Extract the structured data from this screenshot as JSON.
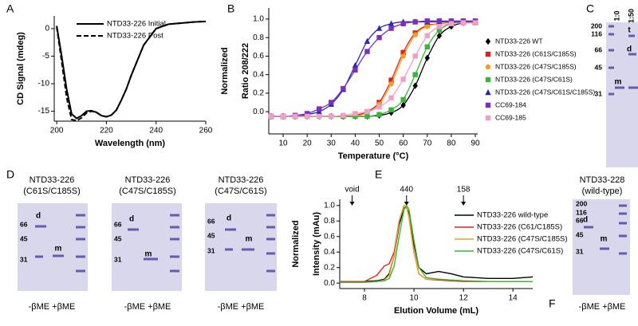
{
  "panel_labels": [
    "A",
    "B",
    "C",
    "D",
    "E",
    "F"
  ],
  "chart_data": [
    {
      "type": "line",
      "xlabel": "Wavelength (nm)",
      "ylabel": [
        "CD Signal (mdeg)"
      ],
      "x": [
        200,
        202,
        204,
        206,
        208,
        210,
        212,
        214,
        216,
        218,
        220,
        222,
        224,
        226,
        228,
        230,
        235,
        240,
        245,
        250,
        255,
        260
      ],
      "series": [
        {
          "name": "NTD33-226 Initial",
          "color": "#000000",
          "dash": false,
          "values": [
            0.5,
            -5,
            -11,
            -15.5,
            -16.3,
            -15.8,
            -15,
            -14.9,
            -15.2,
            -15.8,
            -16,
            -15.7,
            -14.8,
            -13,
            -11,
            -8.5,
            -3,
            0,
            0.8,
            1,
            1.2,
            1.3
          ]
        },
        {
          "name": "NTD33-226 Post",
          "color": "#000000",
          "dash": true,
          "values": [
            0.3,
            -6,
            -12.5,
            -16.5,
            -16.7,
            -16.2,
            -15.3,
            -15,
            -15.2,
            -15.8,
            -16,
            -15.7,
            -14.8,
            -13,
            -11,
            -8.5,
            -3,
            0,
            0.8,
            1,
            1.2,
            1.3
          ]
        }
      ],
      "xlim": [
        199,
        260
      ],
      "ylim": [
        -16.8,
        2.3
      ],
      "xticks": [
        200,
        220,
        240,
        260
      ],
      "yticks": [
        0,
        -5,
        -10,
        -15
      ]
    },
    {
      "type": "scatter",
      "xlabel": "Temperature (°C)",
      "ylabel": [
        "Normalized",
        "Ratio 208/222"
      ],
      "x": [
        5,
        10,
        15,
        20,
        25,
        30,
        35,
        40,
        45,
        50,
        55,
        60,
        65,
        70,
        75,
        80,
        85,
        90
      ],
      "series": [
        {
          "name": "NTD33-226 WT",
          "color": "#000000",
          "marker": "diamond",
          "values": [
            -0.05,
            -0.05,
            -0.05,
            -0.05,
            -0.05,
            -0.05,
            -0.05,
            -0.05,
            -0.05,
            -0.04,
            -0.01,
            0.07,
            0.28,
            0.58,
            0.82,
            0.92,
            0.96,
            0.97
          ]
        },
        {
          "name": "NTD33-226 (C61S/C185S)",
          "color": "#e0201b",
          "marker": "square",
          "values": [
            -0.05,
            -0.05,
            -0.05,
            -0.05,
            -0.05,
            -0.05,
            -0.05,
            -0.04,
            0.0,
            0.1,
            0.34,
            0.64,
            0.85,
            0.93,
            0.95,
            0.96,
            0.96,
            0.96
          ]
        },
        {
          "name": "NTD33-226 (C47S/C185S)",
          "color": "#f0a020",
          "marker": "circle",
          "values": [
            -0.05,
            -0.05,
            -0.05,
            -0.05,
            -0.05,
            -0.05,
            -0.05,
            -0.05,
            -0.01,
            0.08,
            0.3,
            0.6,
            0.83,
            0.92,
            0.95,
            0.96,
            0.96,
            0.96
          ]
        },
        {
          "name": "NTD33-226 (C47S/C61S)",
          "color": "#3cb43c",
          "marker": "square",
          "values": [
            -0.05,
            -0.05,
            -0.05,
            -0.05,
            -0.05,
            -0.05,
            -0.05,
            -0.05,
            -0.05,
            -0.03,
            0.02,
            0.13,
            0.4,
            0.7,
            0.88,
            0.95,
            0.97,
            0.97
          ]
        },
        {
          "name": "NTD33-226 (C47S/C61S/C185S)",
          "color": "#2a2aa8",
          "marker": "triangle",
          "values": [
            -0.05,
            -0.05,
            -0.05,
            -0.03,
            0.0,
            0.08,
            0.24,
            0.5,
            0.76,
            0.9,
            0.95,
            0.97,
            0.97,
            0.97,
            0.97,
            0.97,
            0.97,
            0.97
          ]
        },
        {
          "name": "CC69-184",
          "color": "#7b2fbf",
          "marker": "square",
          "values": [
            -0.05,
            -0.05,
            -0.04,
            -0.02,
            0.03,
            0.1,
            0.25,
            0.45,
            0.65,
            0.8,
            0.9,
            0.95,
            0.97,
            0.98,
            0.98,
            0.98,
            0.98,
            0.98
          ]
        },
        {
          "name": "CC69-185",
          "color": "#f0a0c8",
          "marker": "square",
          "values": [
            -0.05,
            -0.05,
            -0.05,
            -0.05,
            -0.05,
            -0.05,
            -0.04,
            -0.02,
            0.0,
            0.05,
            0.15,
            0.35,
            0.6,
            0.82,
            0.92,
            0.95,
            0.96,
            0.96
          ]
        }
      ],
      "xlim": [
        4,
        91
      ],
      "ylim": [
        -0.24,
        1.12
      ],
      "xticks": [
        10,
        20,
        30,
        40,
        50,
        60,
        70,
        80,
        90
      ],
      "yticks": [
        {
          "value": 0,
          "label": "0.0"
        },
        {
          "value": 0.2,
          "label": "0.2"
        },
        {
          "value": 0.4,
          "label": "0.4"
        },
        {
          "value": 0.6,
          "label": "0.6"
        },
        {
          "value": 0.8,
          "label": "0.8"
        },
        {
          "value": 1,
          "label": "1.0"
        }
      ]
    },
    {
      "type": "line",
      "xlabel": "Elution Volume (mL)",
      "ylabel": [
        "Normalized",
        "Intensity (mAu)"
      ],
      "annotations": [
        {
          "text": "void",
          "x": 7.5
        },
        {
          "text": "440",
          "x": 9.7
        },
        {
          "text": "158",
          "x": 12
        }
      ],
      "x": [
        7,
        7.5,
        8,
        8.5,
        8.8,
        9,
        9.2,
        9.4,
        9.6,
        9.7,
        9.8,
        10,
        10.2,
        10.5,
        11,
        11.5,
        12,
        13,
        14,
        14.8
      ],
      "series": [
        {
          "name": "NTD33-226 wild-type",
          "color": "#000000",
          "values": [
            0.02,
            0.02,
            0.02,
            0.03,
            0.05,
            0.12,
            0.35,
            0.75,
            0.97,
            0.97,
            0.9,
            0.5,
            0.2,
            0.12,
            0.15,
            0.12,
            0.08,
            0.06,
            0.06,
            0.08
          ]
        },
        {
          "name": "NTD33-226 (C61/C185S)",
          "color": "#e0201b",
          "values": [
            0.02,
            0.02,
            0.02,
            0.1,
            0.22,
            0.25,
            0.4,
            0.8,
            1.0,
            0.98,
            0.85,
            0.4,
            0.12,
            0.05,
            0.04,
            0.03,
            0.02,
            0.02,
            0.02,
            0.02
          ]
        },
        {
          "name": "NTD33-226 (C47S/C185S)",
          "color": "#f0a020",
          "values": [
            0.01,
            0.01,
            0.01,
            0.02,
            0.04,
            0.1,
            0.35,
            0.8,
            1.0,
            0.98,
            0.85,
            0.4,
            0.12,
            0.05,
            0.05,
            0.04,
            0.03,
            0.02,
            0.02,
            0.02
          ]
        },
        {
          "name": "NTD33-226 (C47S/C61S)",
          "color": "#3cb43c",
          "values": [
            0.01,
            0.01,
            0.01,
            0.02,
            0.03,
            0.06,
            0.22,
            0.6,
            0.95,
            1.0,
            0.95,
            0.55,
            0.2,
            0.07,
            0.05,
            0.04,
            0.03,
            0.02,
            0.02,
            0.02
          ]
        }
      ],
      "xlim": [
        7,
        14.8
      ],
      "ylim": [
        -0.07,
        1.08
      ],
      "xticks": [
        8,
        10,
        12,
        14
      ],
      "yticks": [
        {
          "value": 0,
          "label": "0.0"
        },
        {
          "value": 0.2,
          "label": "0.2"
        },
        {
          "value": 0.4,
          "label": "0.4"
        },
        {
          "value": 0.6,
          "label": "0.6"
        },
        {
          "value": 0.8,
          "label": "0.8"
        },
        {
          "value": 1,
          "label": "1.0"
        }
      ]
    }
  ],
  "gels": [
    {
      "lanes": [
        "1:0",
        "1:50"
      ],
      "ladder": [
        200,
        116,
        66,
        45,
        31
      ],
      "band_labels": [
        "t",
        "d",
        "m"
      ]
    },
    {
      "title": [
        "NTD33-226",
        "(C61S/C185S)"
      ],
      "ladder": [
        66,
        45,
        31
      ],
      "band_labels": [
        "d",
        "m"
      ],
      "footer": "-βME +βME"
    },
    {
      "title": [
        "NTD33-226",
        "(C47S/C185S)"
      ],
      "ladder": [
        66,
        45,
        31
      ],
      "band_labels": [
        "d",
        "m"
      ],
      "footer": "-βME +βME"
    },
    {
      "title": [
        "NTD33-226",
        "(C47S/C61S)"
      ],
      "ladder": [
        66,
        45,
        31
      ],
      "band_labels": [
        "d",
        "m"
      ],
      "footer": "-βME +βME"
    },
    {
      "title": [
        "NTD33-228",
        "(wild-type)"
      ],
      "ladder": [
        200,
        116,
        66,
        45,
        31
      ],
      "band_labels": [
        "d",
        "m"
      ],
      "footer": "-βME +βME"
    }
  ]
}
